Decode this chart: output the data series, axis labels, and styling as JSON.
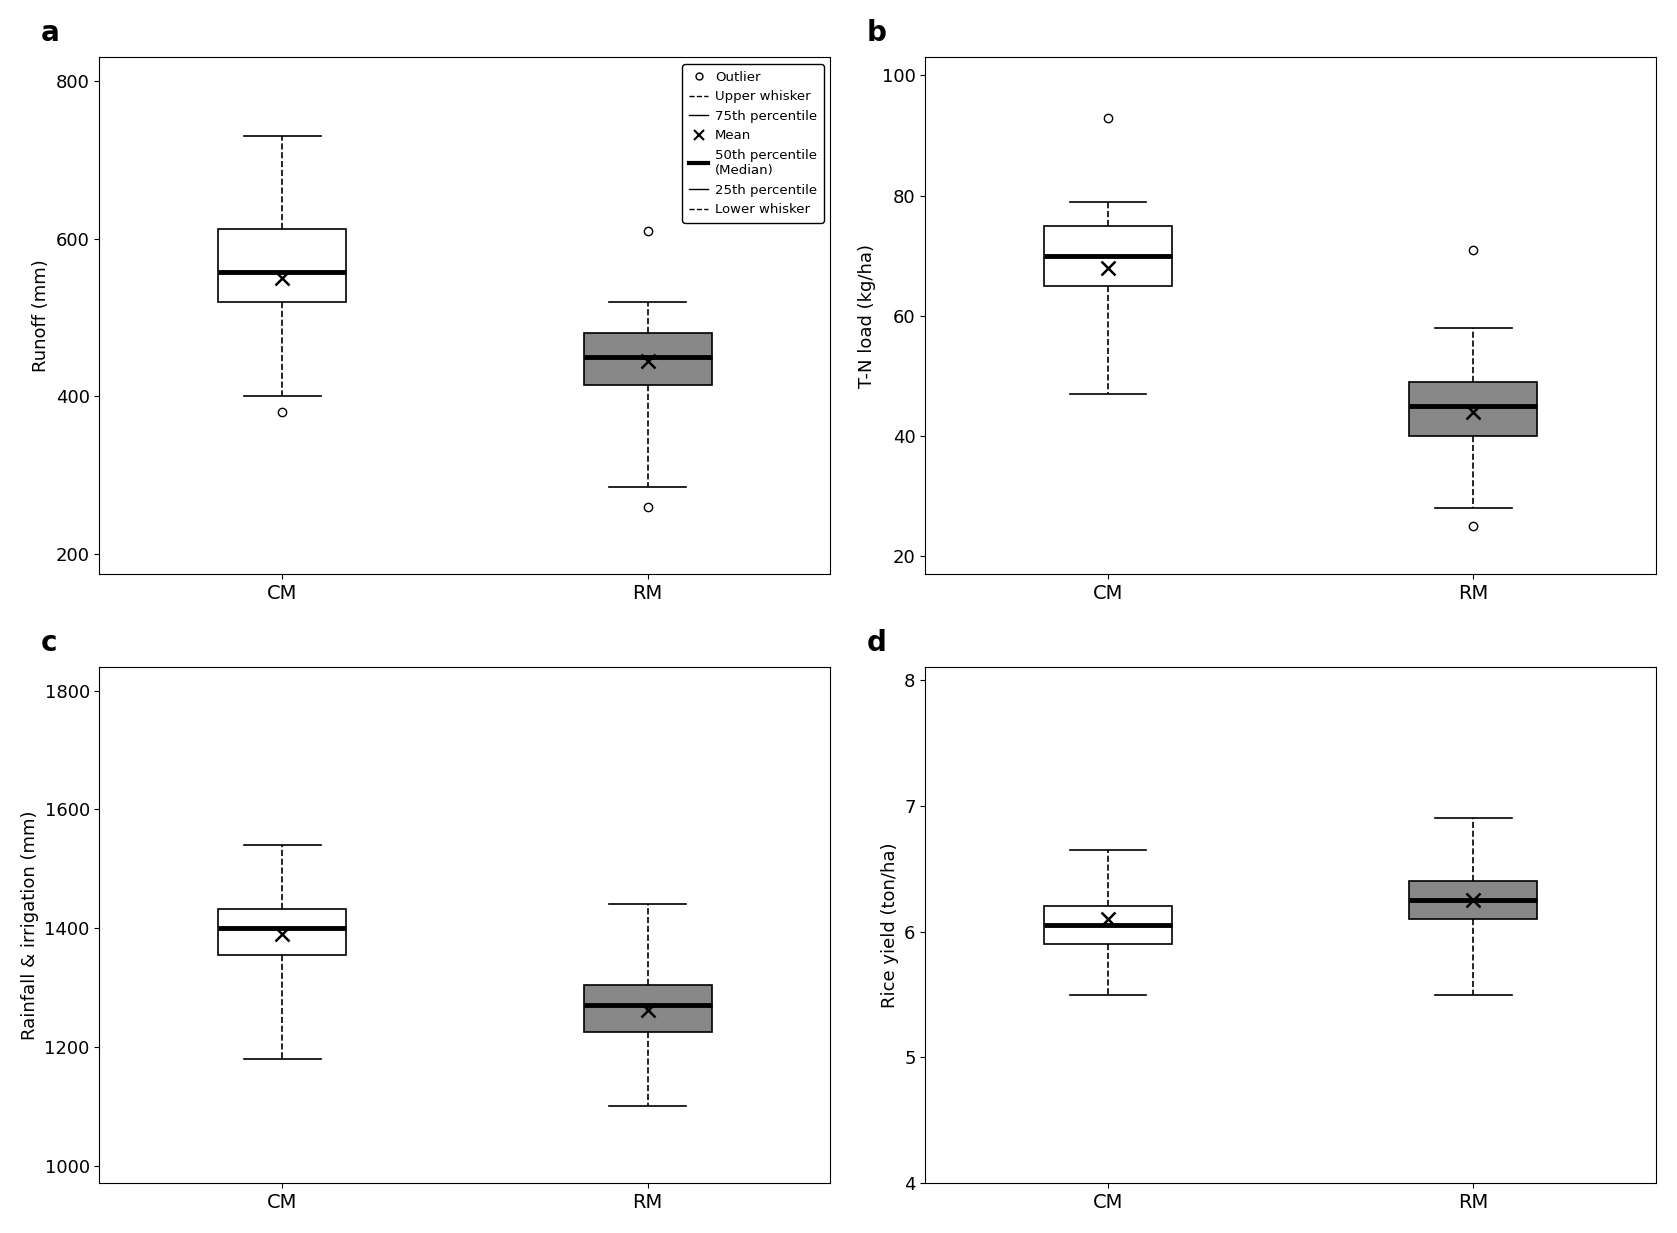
{
  "panels": [
    {
      "label": "a",
      "ylabel": "Runoff (mm)",
      "ylim": [
        175,
        830
      ],
      "yticks": [
        200,
        400,
        600,
        800
      ],
      "boxes": [
        {
          "name": "CM",
          "q1": 520,
          "median": 558,
          "q3": 612,
          "mean": 550,
          "whisker_low": 400,
          "whisker_high": 730,
          "outliers": [
            380
          ],
          "color": "white"
        },
        {
          "name": "RM",
          "q1": 415,
          "median": 450,
          "q3": 480,
          "mean": 445,
          "whisker_low": 285,
          "whisker_high": 520,
          "outliers": [
            260,
            610
          ],
          "color": "#888888"
        }
      ],
      "legend": true
    },
    {
      "label": "b",
      "ylabel": "T-N load (kg/ha)",
      "ylim": [
        17,
        103
      ],
      "yticks": [
        20,
        40,
        60,
        80,
        100
      ],
      "boxes": [
        {
          "name": "CM",
          "q1": 65,
          "median": 70,
          "q3": 75,
          "mean": 68,
          "whisker_low": 47,
          "whisker_high": 79,
          "outliers": [
            93
          ],
          "color": "white"
        },
        {
          "name": "RM",
          "q1": 40,
          "median": 45,
          "q3": 49,
          "mean": 44,
          "whisker_low": 28,
          "whisker_high": 58,
          "outliers": [
            25,
            71
          ],
          "color": "#888888"
        }
      ],
      "legend": false
    },
    {
      "label": "c",
      "ylabel": "Rainfall & irrigation (mm)",
      "ylim": [
        970,
        1840
      ],
      "yticks": [
        1000,
        1200,
        1400,
        1600,
        1800
      ],
      "boxes": [
        {
          "name": "CM",
          "q1": 1355,
          "median": 1400,
          "q3": 1432,
          "mean": 1390,
          "whisker_low": 1180,
          "whisker_high": 1540,
          "outliers": [],
          "color": "white"
        },
        {
          "name": "RM",
          "q1": 1225,
          "median": 1270,
          "q3": 1305,
          "mean": 1263,
          "whisker_low": 1100,
          "whisker_high": 1440,
          "outliers": [],
          "color": "#888888"
        }
      ],
      "legend": false
    },
    {
      "label": "d",
      "ylabel": "Rice yield (ton/ha)",
      "ylim": [
        4.1,
        8.1
      ],
      "yticks": [
        4,
        5,
        6,
        7,
        8
      ],
      "boxes": [
        {
          "name": "CM",
          "q1": 5.9,
          "median": 6.05,
          "q3": 6.2,
          "mean": 6.1,
          "whisker_low": 5.5,
          "whisker_high": 6.65,
          "outliers": [],
          "color": "white"
        },
        {
          "name": "RM",
          "q1": 6.1,
          "median": 6.25,
          "q3": 6.4,
          "mean": 6.25,
          "whisker_low": 5.5,
          "whisker_high": 6.9,
          "outliers": [],
          "color": "#888888"
        }
      ],
      "legend": false
    }
  ],
  "box_width": 0.35,
  "positions": [
    1,
    2
  ],
  "background_color": "white",
  "legend_items": [
    {
      "label": "Outlier",
      "type": "marker"
    },
    {
      "label": "Upper whisker",
      "type": "whisker_top"
    },
    {
      "label": "75th percentile",
      "type": "box_top"
    },
    {
      "label": "Mean",
      "type": "mean"
    },
    {
      "label": "50th percentile\n(Median)",
      "type": "median"
    },
    {
      "label": "25th percentile",
      "type": "box_bottom"
    },
    {
      "label": "Lower whisker",
      "type": "whisker_bottom"
    }
  ]
}
